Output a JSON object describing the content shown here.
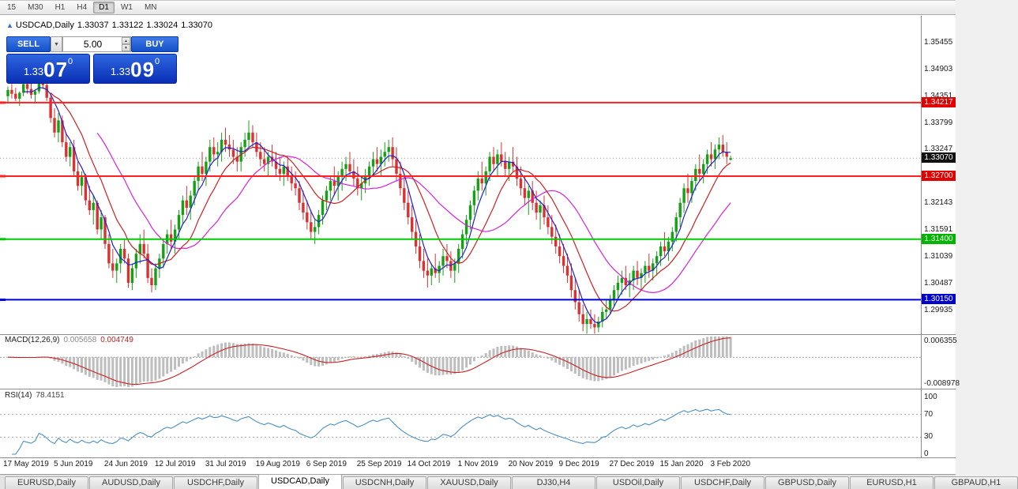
{
  "toolbar": {
    "timeframes": [
      "15",
      "M30",
      "H1",
      "H4",
      "D1",
      "W1",
      "MN"
    ],
    "active": "D1"
  },
  "header": {
    "symbol": "USDCAD,Daily",
    "open": "1.33037",
    "high": "1.33122",
    "low": "1.33024",
    "close": "1.33070"
  },
  "trade_panel": {
    "sell_label": "SELL",
    "buy_label": "BUY",
    "volume": "5.00",
    "drop_icon": "▼",
    "spin_up": "▲",
    "spin_down": "▼",
    "sell_price": {
      "small": "1.33",
      "big": "07",
      "sup": "0"
    },
    "buy_price": {
      "small": "1.33",
      "big": "09",
      "sup": "0"
    }
  },
  "price_axis": {
    "labels": [
      "1.35455",
      "1.34903",
      "1.34351",
      "1.33799",
      "1.33247",
      "1.32143",
      "1.31591",
      "1.31039",
      "1.30487",
      "1.29935"
    ],
    "badges": [
      {
        "text": "1.34217",
        "price": 1.34217,
        "bg": "#e00000"
      },
      {
        "text": "1.32700",
        "price": 1.327,
        "bg": "#e00000"
      },
      {
        "text": "1.33070",
        "price": 1.3307,
        "bg": "#111111"
      },
      {
        "text": "1.31400",
        "price": 1.314,
        "bg": "#00b400"
      },
      {
        "text": "1.30150",
        "price": 1.3015,
        "bg": "#0000cc"
      }
    ]
  },
  "macd": {
    "title": "MACD(12,26,9)",
    "value1": "0.005658",
    "value2": "0.004749",
    "axis_top": "0.006355",
    "axis_bottom": "-0.008978"
  },
  "rsi": {
    "title": "RSI(14)",
    "value": "78.4151",
    "axis": [
      "100",
      "70",
      "30",
      "0"
    ]
  },
  "tabs": {
    "active_index": 3,
    "items": [
      "EURUSD,Daily",
      "AUDUSD,Daily",
      "USDCHF,Daily",
      "USDCAD,Daily",
      "USDCNH,Daily",
      "XAUUSD,Daily",
      "DJ30,H4",
      "USDOil,Daily",
      "USDCHF,Daily",
      "GBPUSD,Daily",
      "EURUSD,H1",
      "GBPAUD,H1"
    ]
  },
  "chart_data": {
    "type": "candlestick",
    "symbol": "USDCAD",
    "timeframe": "Daily",
    "current_price": 1.3307,
    "hlines": [
      {
        "price": 1.34217,
        "color": "#ff2020"
      },
      {
        "price": 1.327,
        "color": "#ff2020"
      },
      {
        "price": 1.314,
        "color": "#00cc00"
      },
      {
        "price": 1.3015,
        "color": "#0000d8"
      }
    ],
    "colors": {
      "up": "#16a016",
      "down": "#d83232",
      "ma_fast": "#2020c8",
      "ma_mid": "#cc2020",
      "ma_slow": "#d820d8",
      "macd_hist": "#bdbdbd",
      "macd_signal": "#cc2020",
      "rsi_line": "#4a8fc0"
    },
    "ma_periods": {
      "fast": 5,
      "mid": 12,
      "slow": 24
    },
    "date_ticks": [
      {
        "bar": 0,
        "label": "17 May 2019"
      },
      {
        "bar": 13,
        "label": "5 Jun 2019"
      },
      {
        "bar": 26,
        "label": "24 Jun 2019"
      },
      {
        "bar": 39,
        "label": "12 Jul 2019"
      },
      {
        "bar": 52,
        "label": "31 Jul 2019"
      },
      {
        "bar": 65,
        "label": "19 Aug 2019"
      },
      {
        "bar": 78,
        "label": "6 Sep 2019"
      },
      {
        "bar": 91,
        "label": "25 Sep 2019"
      },
      {
        "bar": 104,
        "label": "14 Oct 2019"
      },
      {
        "bar": 117,
        "label": "1 Nov 2019"
      },
      {
        "bar": 130,
        "label": "20 Nov 2019"
      },
      {
        "bar": 143,
        "label": "9 Dec 2019"
      },
      {
        "bar": 156,
        "label": "27 Dec 2019"
      },
      {
        "bar": 169,
        "label": "15 Jan 2020"
      },
      {
        "bar": 182,
        "label": "3 Feb 2020"
      }
    ],
    "candles": [
      [
        1.3435,
        1.3455,
        1.342,
        1.3448
      ],
      [
        1.3448,
        1.346,
        1.343,
        1.344
      ],
      [
        1.344,
        1.3452,
        1.3425,
        1.343
      ],
      [
        1.343,
        1.3445,
        1.3415,
        1.3442
      ],
      [
        1.3442,
        1.347,
        1.3435,
        1.346
      ],
      [
        1.346,
        1.3475,
        1.344,
        1.345
      ],
      [
        1.345,
        1.3465,
        1.343,
        1.3438
      ],
      [
        1.3438,
        1.345,
        1.342,
        1.3445
      ],
      [
        1.3445,
        1.348,
        1.344,
        1.347
      ],
      [
        1.347,
        1.3485,
        1.345,
        1.3458
      ],
      [
        1.3458,
        1.3465,
        1.3425,
        1.3432
      ],
      [
        1.3432,
        1.344,
        1.338,
        1.339
      ],
      [
        1.339,
        1.341,
        1.335,
        1.336
      ],
      [
        1.336,
        1.34,
        1.334,
        1.3385
      ],
      [
        1.3385,
        1.3395,
        1.333,
        1.334
      ],
      [
        1.334,
        1.336,
        1.33,
        1.331
      ],
      [
        1.331,
        1.334,
        1.329,
        1.333
      ],
      [
        1.333,
        1.3345,
        1.327,
        1.328
      ],
      [
        1.328,
        1.33,
        1.324,
        1.325
      ],
      [
        1.325,
        1.328,
        1.323,
        1.3268
      ],
      [
        1.3268,
        1.3275,
        1.321,
        1.322
      ],
      [
        1.322,
        1.325,
        1.319,
        1.32
      ],
      [
        1.32,
        1.323,
        1.317,
        1.3215
      ],
      [
        1.3215,
        1.322,
        1.315,
        1.316
      ],
      [
        1.316,
        1.32,
        1.314,
        1.3185
      ],
      [
        1.3185,
        1.319,
        1.312,
        1.313
      ],
      [
        1.313,
        1.315,
        1.308,
        1.309
      ],
      [
        1.309,
        1.312,
        1.306,
        1.3075
      ],
      [
        1.3075,
        1.31,
        1.305,
        1.309
      ],
      [
        1.309,
        1.313,
        1.307,
        1.312
      ],
      [
        1.312,
        1.314,
        1.309,
        1.31
      ],
      [
        1.31,
        1.311,
        1.304,
        1.305
      ],
      [
        1.305,
        1.309,
        1.3035,
        1.308
      ],
      [
        1.308,
        1.312,
        1.306,
        1.311
      ],
      [
        1.311,
        1.315,
        1.309,
        1.313
      ],
      [
        1.313,
        1.316,
        1.31,
        1.311
      ],
      [
        1.311,
        1.313,
        1.305,
        1.306
      ],
      [
        1.306,
        1.308,
        1.303,
        1.3045
      ],
      [
        1.3045,
        1.309,
        1.3035,
        1.308
      ],
      [
        1.308,
        1.311,
        1.306,
        1.31
      ],
      [
        1.31,
        1.314,
        1.308,
        1.313
      ],
      [
        1.313,
        1.316,
        1.311,
        1.315
      ],
      [
        1.315,
        1.318,
        1.312,
        1.3135
      ],
      [
        1.3135,
        1.317,
        1.311,
        1.316
      ],
      [
        1.316,
        1.32,
        1.314,
        1.319
      ],
      [
        1.319,
        1.323,
        1.317,
        1.322
      ],
      [
        1.322,
        1.325,
        1.319,
        1.3205
      ],
      [
        1.3205,
        1.324,
        1.318,
        1.323
      ],
      [
        1.323,
        1.327,
        1.321,
        1.326
      ],
      [
        1.326,
        1.33,
        1.324,
        1.329
      ],
      [
        1.329,
        1.332,
        1.326,
        1.3275
      ],
      [
        1.3275,
        1.331,
        1.325,
        1.33
      ],
      [
        1.33,
        1.3345,
        1.328,
        1.333
      ],
      [
        1.333,
        1.335,
        1.33,
        1.3315
      ],
      [
        1.3315,
        1.334,
        1.329,
        1.332
      ],
      [
        1.332,
        1.336,
        1.33,
        1.3345
      ],
      [
        1.3345,
        1.337,
        1.332,
        1.3335
      ],
      [
        1.3335,
        1.3355,
        1.331,
        1.3325
      ],
      [
        1.3325,
        1.3345,
        1.3295,
        1.331
      ],
      [
        1.331,
        1.333,
        1.328,
        1.33
      ],
      [
        1.33,
        1.334,
        1.328,
        1.333
      ],
      [
        1.333,
        1.336,
        1.331,
        1.3345
      ],
      [
        1.3345,
        1.3385,
        1.333,
        1.336
      ],
      [
        1.336,
        1.3375,
        1.333,
        1.334
      ],
      [
        1.334,
        1.336,
        1.331,
        1.332
      ],
      [
        1.332,
        1.334,
        1.329,
        1.3305
      ],
      [
        1.3305,
        1.333,
        1.328,
        1.3295
      ],
      [
        1.3295,
        1.332,
        1.327,
        1.331
      ],
      [
        1.331,
        1.3335,
        1.329,
        1.33
      ],
      [
        1.33,
        1.332,
        1.327,
        1.3285
      ],
      [
        1.3285,
        1.331,
        1.326,
        1.3275
      ],
      [
        1.3275,
        1.33,
        1.325,
        1.329
      ],
      [
        1.329,
        1.331,
        1.326,
        1.327
      ],
      [
        1.327,
        1.329,
        1.324,
        1.3255
      ],
      [
        1.3255,
        1.328,
        1.323,
        1.3245
      ],
      [
        1.3245,
        1.326,
        1.32,
        1.3215
      ],
      [
        1.3215,
        1.324,
        1.318,
        1.3195
      ],
      [
        1.3195,
        1.322,
        1.316,
        1.3175
      ],
      [
        1.3175,
        1.32,
        1.314,
        1.3155
      ],
      [
        1.3155,
        1.318,
        1.313,
        1.3165
      ],
      [
        1.3165,
        1.32,
        1.315,
        1.319
      ],
      [
        1.319,
        1.323,
        1.317,
        1.322
      ],
      [
        1.322,
        1.325,
        1.32,
        1.324
      ],
      [
        1.324,
        1.327,
        1.322,
        1.326
      ],
      [
        1.326,
        1.329,
        1.323,
        1.325
      ],
      [
        1.325,
        1.328,
        1.322,
        1.327
      ],
      [
        1.327,
        1.33,
        1.324,
        1.3285
      ],
      [
        1.3285,
        1.331,
        1.326,
        1.3295
      ],
      [
        1.3295,
        1.332,
        1.327,
        1.328
      ],
      [
        1.328,
        1.3305,
        1.325,
        1.3265
      ],
      [
        1.3265,
        1.329,
        1.323,
        1.3245
      ],
      [
        1.3245,
        1.327,
        1.322,
        1.3255
      ],
      [
        1.3255,
        1.3285,
        1.3235,
        1.327
      ],
      [
        1.327,
        1.33,
        1.325,
        1.329
      ],
      [
        1.329,
        1.332,
        1.327,
        1.3305
      ],
      [
        1.3305,
        1.333,
        1.328,
        1.3295
      ],
      [
        1.3295,
        1.3325,
        1.327,
        1.331
      ],
      [
        1.331,
        1.334,
        1.329,
        1.332
      ],
      [
        1.332,
        1.3345,
        1.33,
        1.333
      ],
      [
        1.333,
        1.335,
        1.329,
        1.3305
      ],
      [
        1.3305,
        1.333,
        1.326,
        1.3275
      ],
      [
        1.3275,
        1.33,
        1.323,
        1.3245
      ],
      [
        1.3245,
        1.327,
        1.32,
        1.3215
      ],
      [
        1.3215,
        1.324,
        1.317,
        1.3185
      ],
      [
        1.3185,
        1.321,
        1.314,
        1.3155
      ],
      [
        1.3155,
        1.318,
        1.311,
        1.3125
      ],
      [
        1.3125,
        1.315,
        1.308,
        1.3095
      ],
      [
        1.3095,
        1.312,
        1.306,
        1.3075
      ],
      [
        1.3075,
        1.31,
        1.304,
        1.3065
      ],
      [
        1.3065,
        1.309,
        1.3045,
        1.308
      ],
      [
        1.308,
        1.311,
        1.306,
        1.307
      ],
      [
        1.307,
        1.3095,
        1.305,
        1.3085
      ],
      [
        1.3085,
        1.312,
        1.3065,
        1.3105
      ],
      [
        1.3105,
        1.313,
        1.308,
        1.3095
      ],
      [
        1.3095,
        1.3115,
        1.306,
        1.3075
      ],
      [
        1.3075,
        1.31,
        1.305,
        1.309
      ],
      [
        1.309,
        1.313,
        1.307,
        1.312
      ],
      [
        1.312,
        1.316,
        1.31,
        1.315
      ],
      [
        1.315,
        1.319,
        1.313,
        1.318
      ],
      [
        1.318,
        1.322,
        1.316,
        1.321
      ],
      [
        1.321,
        1.325,
        1.319,
        1.324
      ],
      [
        1.324,
        1.328,
        1.322,
        1.3265
      ],
      [
        1.3265,
        1.33,
        1.324,
        1.3255
      ],
      [
        1.3255,
        1.329,
        1.323,
        1.328
      ],
      [
        1.328,
        1.332,
        1.326,
        1.331
      ],
      [
        1.331,
        1.333,
        1.328,
        1.3295
      ],
      [
        1.3295,
        1.3325,
        1.327,
        1.3315
      ],
      [
        1.3315,
        1.334,
        1.329,
        1.33
      ],
      [
        1.33,
        1.332,
        1.327,
        1.3285
      ],
      [
        1.3285,
        1.331,
        1.326,
        1.33
      ],
      [
        1.33,
        1.333,
        1.328,
        1.329
      ],
      [
        1.329,
        1.331,
        1.325,
        1.3265
      ],
      [
        1.3265,
        1.329,
        1.323,
        1.3245
      ],
      [
        1.3245,
        1.327,
        1.321,
        1.3225
      ],
      [
        1.3225,
        1.325,
        1.319,
        1.324
      ],
      [
        1.324,
        1.326,
        1.32,
        1.3215
      ],
      [
        1.3215,
        1.324,
        1.318,
        1.3195
      ],
      [
        1.3195,
        1.322,
        1.316,
        1.321
      ],
      [
        1.321,
        1.323,
        1.317,
        1.3185
      ],
      [
        1.3185,
        1.321,
        1.315,
        1.3165
      ],
      [
        1.3165,
        1.319,
        1.313,
        1.3145
      ],
      [
        1.3145,
        1.317,
        1.311,
        1.3125
      ],
      [
        1.3125,
        1.315,
        1.309,
        1.3105
      ],
      [
        1.3105,
        1.313,
        1.307,
        1.3085
      ],
      [
        1.3085,
        1.311,
        1.305,
        1.3065
      ],
      [
        1.3065,
        1.309,
        1.302,
        1.3035
      ],
      [
        1.3035,
        1.306,
        1.2995,
        1.301
      ],
      [
        1.301,
        1.3035,
        1.297,
        1.2985
      ],
      [
        1.2985,
        1.3005,
        1.295,
        1.2965
      ],
      [
        1.2965,
        1.299,
        1.2945,
        1.2975
      ],
      [
        1.2975,
        1.2995,
        1.2955,
        1.2965
      ],
      [
        1.2965,
        1.2985,
        1.2945,
        1.2958
      ],
      [
        1.2958,
        1.298,
        1.2948,
        1.297
      ],
      [
        1.297,
        1.3,
        1.2958,
        1.299
      ],
      [
        1.299,
        1.3015,
        1.2975,
        1.2995
      ],
      [
        1.2995,
        1.3025,
        1.2985,
        1.3015
      ],
      [
        1.3015,
        1.3045,
        1.3,
        1.3035
      ],
      [
        1.3035,
        1.3065,
        1.3015,
        1.305
      ],
      [
        1.305,
        1.3075,
        1.3025,
        1.306
      ],
      [
        1.306,
        1.3085,
        1.3035,
        1.3045
      ],
      [
        1.3045,
        1.307,
        1.302,
        1.3055
      ],
      [
        1.3055,
        1.3085,
        1.3035,
        1.3075
      ],
      [
        1.3075,
        1.3095,
        1.3045,
        1.306
      ],
      [
        1.306,
        1.308,
        1.3035,
        1.307
      ],
      [
        1.307,
        1.3095,
        1.305,
        1.3085
      ],
      [
        1.3085,
        1.311,
        1.306,
        1.3075
      ],
      [
        1.3075,
        1.31,
        1.3055,
        1.309
      ],
      [
        1.309,
        1.3115,
        1.3065,
        1.3105
      ],
      [
        1.3105,
        1.3135,
        1.3085,
        1.3125
      ],
      [
        1.3125,
        1.3155,
        1.3105,
        1.3115
      ],
      [
        1.3115,
        1.3145,
        1.3095,
        1.3135
      ],
      [
        1.3135,
        1.3165,
        1.3115,
        1.3155
      ],
      [
        1.3155,
        1.3195,
        1.3135,
        1.3185
      ],
      [
        1.3185,
        1.3225,
        1.3165,
        1.3215
      ],
      [
        1.3215,
        1.3255,
        1.3195,
        1.3245
      ],
      [
        1.3245,
        1.3275,
        1.3215,
        1.3235
      ],
      [
        1.3235,
        1.327,
        1.3215,
        1.326
      ],
      [
        1.326,
        1.3295,
        1.324,
        1.3285
      ],
      [
        1.3285,
        1.3315,
        1.326,
        1.3275
      ],
      [
        1.3275,
        1.3305,
        1.3255,
        1.3295
      ],
      [
        1.3295,
        1.3325,
        1.3275,
        1.3315
      ],
      [
        1.3315,
        1.334,
        1.329,
        1.3305
      ],
      [
        1.3305,
        1.3335,
        1.3285,
        1.3325
      ],
      [
        1.3325,
        1.335,
        1.3305,
        1.3335
      ],
      [
        1.3335,
        1.3355,
        1.331,
        1.332
      ],
      [
        1.332,
        1.334,
        1.3295,
        1.331
      ],
      [
        1.33037,
        1.33122,
        1.33024,
        1.3307
      ]
    ]
  }
}
